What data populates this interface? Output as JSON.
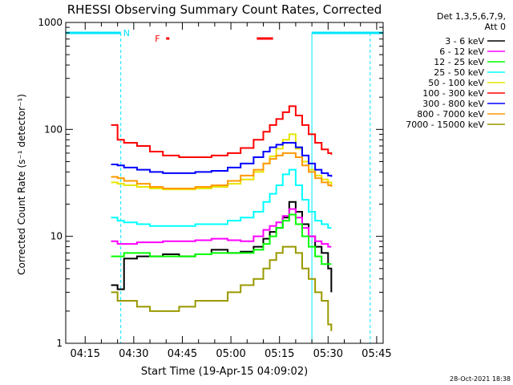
{
  "chart_data": {
    "type": "line",
    "title": "RHESSI Observing Summary Count Rates, Corrected",
    "xlabel": "Start Time (19-Apr-15 04:09:02)",
    "ylabel": "Corrected Count Rate (s⁻¹ detector⁻¹)",
    "y_scale": "log",
    "ylim": [
      1,
      1000
    ],
    "xlim_minutes": [
      0,
      98
    ],
    "x_ticks": [
      "04:15",
      "04:30",
      "04:45",
      "05:00",
      "05:15",
      "05:30",
      "05:45"
    ],
    "y_ticks": [
      "1",
      "10",
      "100",
      "1000"
    ],
    "legend_header": [
      "Det 1,3,5,6,7,9,",
      "Att 0"
    ],
    "footer": "28-Oct-2021 18:38",
    "flags": {
      "night_label": "N",
      "flare_label": "F"
    },
    "series": [
      {
        "name": "3 - 6 keV",
        "color": "#000000",
        "x": [
          14,
          16,
          18,
          22,
          26,
          30,
          35,
          40,
          45,
          50,
          54,
          58,
          61,
          63,
          65,
          67,
          69,
          71,
          73,
          75,
          77,
          79,
          81,
          82
        ],
        "y": [
          3.5,
          3.2,
          6.2,
          6.5,
          6.5,
          6.8,
          6.5,
          6.8,
          7.5,
          7.0,
          7.2,
          8.0,
          9.5,
          11,
          12,
          15,
          21,
          17,
          13,
          10,
          8,
          7,
          5,
          3
        ]
      },
      {
        "name": "6 - 12 keV",
        "color": "#ff00ff",
        "x": [
          14,
          16,
          18,
          22,
          26,
          30,
          35,
          40,
          45,
          50,
          54,
          58,
          61,
          63,
          65,
          67,
          69,
          71,
          73,
          75,
          77,
          79,
          81,
          82
        ],
        "y": [
          9,
          8.5,
          8.5,
          8.8,
          8.8,
          9.0,
          9.0,
          9.2,
          9.5,
          9.2,
          9.0,
          10,
          11.5,
          12.5,
          13.5,
          15.5,
          18,
          15,
          12,
          10,
          9,
          8.5,
          8,
          8
        ]
      },
      {
        "name": "12 - 25 keV",
        "color": "#00ff00",
        "x": [
          14,
          16,
          18,
          22,
          26,
          30,
          35,
          40,
          45,
          50,
          54,
          58,
          61,
          63,
          65,
          67,
          69,
          71,
          73,
          75,
          77,
          79,
          81,
          82
        ],
        "y": [
          6.5,
          6.5,
          7.0,
          7.0,
          6.5,
          6.5,
          6.5,
          6.8,
          7.0,
          7.0,
          7.0,
          7.5,
          8.5,
          10,
          12,
          14,
          16,
          13,
          10,
          8,
          6.5,
          5.5,
          5.5,
          5.5
        ]
      },
      {
        "name": "25 - 50 keV",
        "color": "#00ffff",
        "x": [
          14,
          16,
          18,
          22,
          26,
          30,
          35,
          40,
          45,
          50,
          54,
          58,
          61,
          63,
          65,
          67,
          69,
          71,
          73,
          75,
          77,
          79,
          81,
          82
        ],
        "y": [
          15,
          14,
          13.5,
          13,
          12.5,
          12.5,
          12.5,
          13,
          13,
          14,
          15,
          17,
          21,
          25,
          30,
          38,
          42,
          30,
          22,
          17,
          14,
          13,
          12,
          12
        ]
      },
      {
        "name": "50 - 100 keV",
        "color": "#e6e600",
        "x": [
          14,
          16,
          18,
          22,
          26,
          30,
          35,
          40,
          45,
          50,
          54,
          58,
          61,
          63,
          65,
          67,
          69,
          71,
          73,
          75,
          77,
          79,
          81,
          82
        ],
        "y": [
          32,
          31,
          30,
          29,
          28,
          27.5,
          27.5,
          28,
          29,
          31,
          34,
          40,
          48,
          56,
          66,
          80,
          90,
          66,
          50,
          42,
          37,
          34,
          32,
          30
        ]
      },
      {
        "name": "100 - 300 keV",
        "color": "#ff0000",
        "x": [
          14,
          16,
          18,
          22,
          26,
          30,
          35,
          40,
          45,
          50,
          54,
          58,
          61,
          63,
          65,
          67,
          69,
          71,
          73,
          75,
          77,
          79,
          81,
          82
        ],
        "y": [
          110,
          80,
          75,
          70,
          62,
          57,
          55,
          55,
          57,
          60,
          67,
          80,
          95,
          110,
          125,
          145,
          165,
          135,
          110,
          90,
          75,
          65,
          60,
          58
        ]
      },
      {
        "name": "300 - 800 keV",
        "color": "#0000ff",
        "x": [
          14,
          16,
          18,
          22,
          26,
          30,
          35,
          40,
          45,
          50,
          54,
          58,
          61,
          63,
          65,
          67,
          69,
          71,
          73,
          75,
          77,
          79,
          81,
          82
        ],
        "y": [
          47,
          46,
          44,
          42,
          40,
          39,
          39,
          40,
          41,
          44,
          48,
          55,
          62,
          68,
          72,
          75,
          75,
          68,
          57,
          48,
          42,
          39,
          37,
          36
        ]
      },
      {
        "name": "800 - 7000 keV",
        "color": "#ff9900",
        "x": [
          14,
          16,
          18,
          22,
          26,
          30,
          35,
          40,
          45,
          50,
          54,
          58,
          61,
          63,
          65,
          67,
          69,
          71,
          73,
          75,
          77,
          79,
          81,
          82
        ],
        "y": [
          36,
          35,
          33,
          31,
          29,
          28,
          28,
          29,
          30,
          33,
          37,
          42,
          48,
          53,
          57,
          60,
          60,
          55,
          46,
          40,
          35,
          32,
          30,
          29
        ]
      },
      {
        "name": "7000 - 15000 keV",
        "color": "#999900",
        "x": [
          14,
          16,
          18,
          22,
          26,
          30,
          35,
          40,
          45,
          50,
          54,
          58,
          61,
          63,
          65,
          67,
          69,
          71,
          73,
          75,
          77,
          79,
          81,
          82
        ],
        "y": [
          3,
          2.5,
          2.5,
          2.2,
          2.0,
          2.0,
          2.2,
          2.5,
          2.5,
          3.0,
          3.5,
          4.0,
          5.0,
          6.0,
          7.0,
          8.0,
          8.0,
          7.0,
          5.0,
          4.0,
          3.0,
          2.5,
          1.5,
          1.3
        ]
      }
    ],
    "markers": {
      "night_bars": [
        {
          "x_start": 0,
          "x_end": 17
        },
        {
          "x_start": 76,
          "x_end": 98
        }
      ],
      "night_boundaries_dashed": [
        17,
        94
      ],
      "night_boundaries_solid": [
        76
      ],
      "flare_bar": {
        "x_start": 59,
        "x_end": 64
      },
      "flare_bar_small": {
        "x_start": 31,
        "x_end": 32
      }
    }
  }
}
